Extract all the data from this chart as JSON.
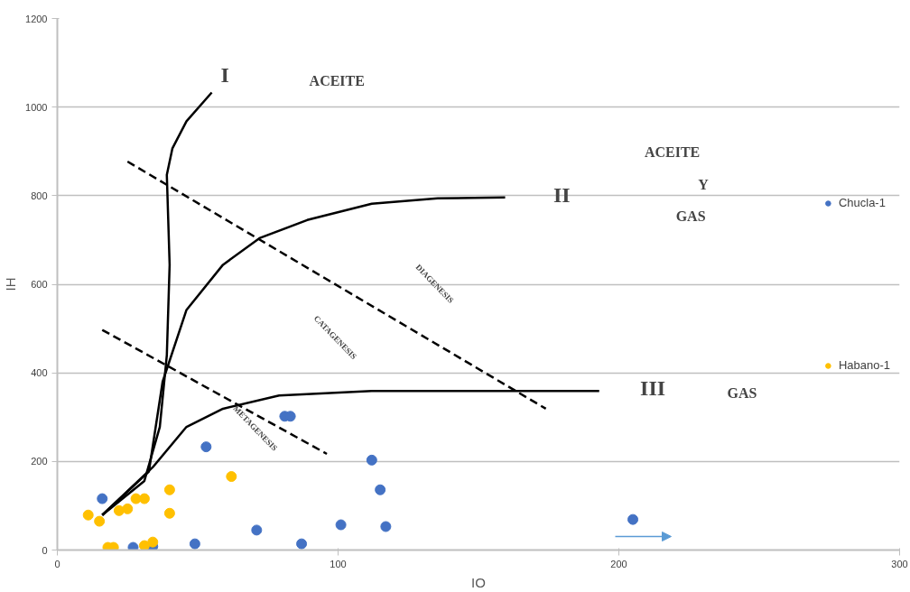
{
  "chart_data": {
    "type": "scatter",
    "xlabel": "IO",
    "ylabel": "IH",
    "xlim": [
      0,
      300
    ],
    "ylim": [
      0,
      1200
    ],
    "xticks": [
      0,
      100,
      200,
      300
    ],
    "yticks": [
      0,
      200,
      400,
      600,
      800,
      1000,
      1200
    ],
    "grid": "y",
    "legend": "right",
    "marker": "circle",
    "series": [
      {
        "name": "Chucla-1",
        "color": "#4472c4",
        "x": [
          16,
          27,
          34,
          53,
          81,
          83,
          112,
          115,
          117,
          101,
          71,
          49,
          87,
          205
        ],
        "values": [
          116,
          6,
          8,
          233,
          302,
          302,
          203,
          136,
          53,
          57,
          45,
          14,
          14,
          69
        ]
      },
      {
        "name": "Habano-1",
        "color": "#ffc000",
        "x": [
          11,
          15,
          18,
          20,
          22,
          25,
          28,
          31,
          40,
          40,
          62,
          31,
          34
        ],
        "values": [
          79,
          65,
          6,
          6,
          89,
          93,
          116,
          116,
          136,
          83,
          166,
          10,
          18
        ]
      },
      {
        "type": "line",
        "color": "#000000",
        "line_style": "solid",
        "marker": "none",
        "x": [
          16,
          31,
          36.5,
          39,
          40,
          39,
          41,
          46,
          55
        ],
        "values": [
          79,
          156,
          278,
          440,
          644,
          847,
          907,
          968,
          1033
        ]
      },
      {
        "type": "line",
        "color": "#000000",
        "line_style": "solid",
        "marker": "none",
        "x": [
          16,
          32.6,
          37.5,
          46,
          59,
          72,
          89,
          112,
          135.5,
          159.5
        ],
        "values": [
          79,
          177,
          380,
          542,
          644,
          704,
          745,
          782,
          794,
          796
        ]
      },
      {
        "type": "line",
        "color": "#000000",
        "line_style": "solid",
        "marker": "none",
        "x": [
          16,
          34,
          46,
          59,
          79,
          112,
          162,
          193
        ],
        "values": [
          79,
          187,
          278,
          319,
          349,
          359,
          359,
          359
        ]
      },
      {
        "type": "line",
        "color": "#000000",
        "line_style": "dashed",
        "marker": "none",
        "x": [
          25,
          174
        ],
        "values": [
          877,
          319
        ]
      },
      {
        "type": "line",
        "color": "#000000",
        "line_style": "dashed",
        "marker": "none",
        "x": [
          16,
          96
        ],
        "values": [
          497,
          217
        ]
      }
    ],
    "annotations": [
      "I",
      "ACEITE",
      "ACEITE",
      "Y",
      "GAS",
      "II",
      "III",
      "GAS",
      "DIAGENESIS",
      "CATAGENESIS",
      "METAGENESIS"
    ]
  }
}
